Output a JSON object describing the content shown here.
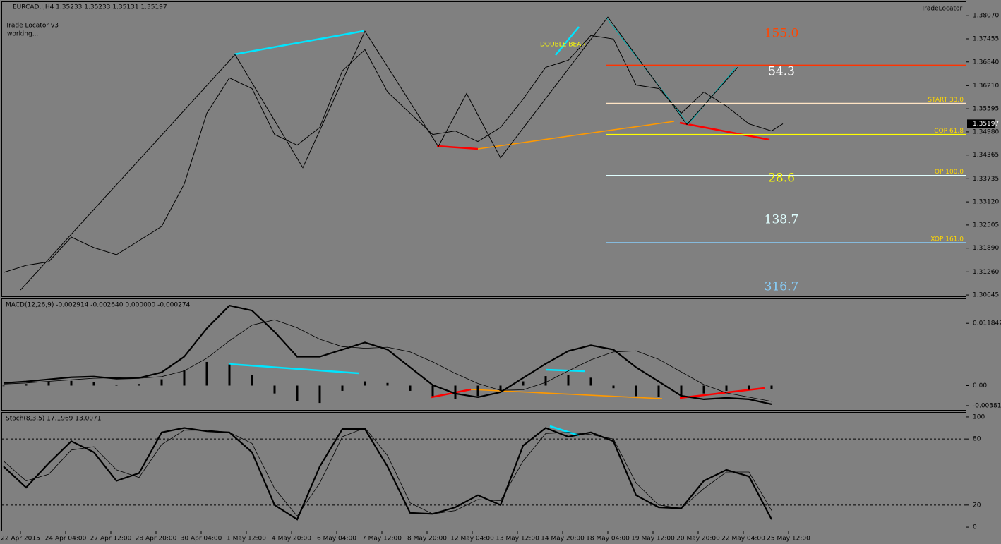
{
  "chart_data": [
    {
      "type": "line",
      "title": "EURCAD.I,H4 1.35233 1.35233 1.35131 1.35197",
      "indicator_name": "Trade Locator v3",
      "status": "working...",
      "brand": "TradeLocator",
      "pattern_label": "DOUBLE  BEAR",
      "xlim": [
        0,
        170.5
      ],
      "ylim": [
        1.3059,
        1.3843
      ],
      "yticks": [
        {
          "value": 1.3807,
          "label": "1.38070"
        },
        1.37455,
        {
          "value": 1.3684,
          "label": "1.36840"
        },
        {
          "value": 1.3621,
          "label": "1.36210"
        },
        1.35595,
        {
          "value": 1.3498,
          "label": "1.34980"
        },
        1.34365,
        1.33735,
        {
          "value": 1.3312,
          "label": "1.33120"
        },
        1.32505,
        {
          "value": 1.3189,
          "label": "1.31890"
        },
        {
          "value": 1.3126,
          "label": "1.31260"
        },
        1.30645
      ],
      "x": [
        0,
        4,
        8,
        12,
        16,
        20,
        24,
        28,
        32,
        36,
        40,
        44,
        48,
        52,
        56,
        60,
        64,
        68,
        72,
        76,
        80,
        84,
        88,
        92,
        96,
        100,
        104,
        108,
        112,
        116,
        120,
        124,
        128,
        132,
        136,
        138
      ],
      "series": [
        {
          "color": "#000000",
          "values": [
            1.31245,
            1.31433,
            1.31527,
            1.32185,
            1.31903,
            1.31715,
            1.32091,
            1.32467,
            1.33595,
            1.35475,
            1.36415,
            1.36133,
            1.34911,
            1.34629,
            1.35099,
            1.36603,
            1.37167,
            1.36039,
            1.35475,
            1.34911,
            1.35005,
            1.34723,
            1.35099,
            1.35851,
            1.36697,
            1.36885,
            1.37543,
            1.37449,
            1.36227,
            1.36133,
            1.35475,
            1.36039,
            1.35663,
            1.35193,
            1.35005,
            1.35197
          ]
        }
      ],
      "zigzag": {
        "color": "#000000",
        "x": [
          3,
          41,
          53,
          64,
          77,
          82,
          88,
          107,
          121,
          130
        ],
        "values": [
          1.30775,
          1.37036,
          1.34028,
          1.37656,
          1.34592,
          1.36002,
          1.34291,
          1.38032,
          1.35175,
          1.36697
        ]
      },
      "last_price": 1.35197,
      "levels": [
        {
          "value": 1.36754,
          "color": "#ff3300"
        },
        {
          "label": "START 33.0",
          "value": 1.35739,
          "color": "#ffe4c4"
        },
        {
          "label": "COP 61.8",
          "value": 1.34911,
          "color": "#ffff00"
        },
        {
          "label": "OP 100.0",
          "value": 1.33821,
          "color": "#e0ffff"
        },
        {
          "label": "XOP 161.0",
          "value": 1.32035,
          "color": "#87cefa"
        }
      ],
      "annotations": [
        {
          "text": "155.0",
          "color": "#ff4500"
        },
        {
          "text": "54.3",
          "color": "#ffffff"
        },
        {
          "text": "28.6",
          "color": "#ffff00"
        },
        {
          "text": "138.7",
          "color": "#e0ffff"
        },
        {
          "text": "316.7",
          "color": "#87cefa"
        }
      ]
    },
    {
      "type": "bar",
      "title": "MACD(12,26,9) -0.002914 -0.002640 0.000000 -0.000274",
      "xlim": [
        0,
        170.5
      ],
      "ylim": [
        -0.004763,
        0.016432
      ],
      "yticks": [
        0.011842,
        {
          "value": 0,
          "label": "0.00"
        },
        -0.003818
      ],
      "x": [
        0,
        4,
        8,
        12,
        16,
        20,
        24,
        28,
        32,
        36,
        40,
        44,
        48,
        52,
        56,
        60,
        64,
        68,
        72,
        76,
        80,
        84,
        88,
        92,
        96,
        100,
        104,
        108,
        112,
        116,
        120,
        124,
        128,
        132,
        136
      ],
      "color": "#000000",
      "values": [
        -0.0001,
        0.0003,
        0.0008,
        0.0009,
        0.0007,
        0.0002,
        0.0003,
        0.0012,
        0.003,
        0.0045,
        0.004,
        0.002,
        -0.0015,
        -0.003,
        -0.0033,
        -0.001,
        0.0008,
        0.0005,
        -0.001,
        -0.002,
        -0.0025,
        -0.002,
        -0.001,
        0.0008,
        0.0018,
        0.002,
        0.0015,
        -0.0005,
        -0.002,
        -0.0022,
        -0.0022,
        -0.0015,
        -0.001,
        -0.0008,
        -0.0006
      ],
      "series": [
        {
          "color": "#000000",
          "width": 2.2,
          "values": [
            0.000502,
            0.000772,
            0.001177,
            0.001582,
            0.001717,
            0.001312,
            0.001447,
            0.002527,
            0.005497,
            0.010897,
            0.015217,
            0.014272,
            0.010222,
            0.005497,
            0.005497,
            0.006847,
            0.008197,
            0.006847,
            0.003472,
            9.7e-05,
            -0.001523,
            -0.002198,
            -0.001253,
            0.001447,
            0.004147,
            0.006577,
            0.007657,
            0.006847,
            0.003472,
            0.000772,
            -0.001928,
            -0.002603,
            -0.002333,
            -0.002603,
            -0.003548
          ]
        },
        {
          "color": "#000000",
          "width": 0.8,
          "values": [
            0.0003,
            0.0005,
            0.0008,
            0.0011,
            0.0014,
            0.0015,
            0.0014,
            0.0017,
            0.0028,
            0.0052,
            0.0085,
            0.0115,
            0.0125,
            0.011,
            0.0088,
            0.0074,
            0.0071,
            0.0073,
            0.0064,
            0.0045,
            0.0023,
            0.0004,
            -0.0009,
            -0.0008,
            0.0006,
            0.0028,
            0.0049,
            0.0064,
            0.0066,
            0.005,
            0.0026,
            0.0002,
            -0.0014,
            -0.0022,
            -0.003
          ]
        }
      ]
    },
    {
      "type": "line",
      "title": "Stoch(8,3,5) 17.1969 13.0071",
      "xlim": [
        0,
        170.5
      ],
      "ylim": [
        -3.8,
        103.8
      ],
      "yticks": [
        100,
        80,
        20,
        0
      ],
      "levels": [
        80,
        20
      ],
      "xticks": [
        {
          "value": 3,
          "label": "22 Apr 2015"
        },
        {
          "value": 11,
          "label": "24 Apr 04:00"
        },
        {
          "value": 19,
          "label": "27 Apr 12:00"
        },
        {
          "value": 27,
          "label": "28 Apr 20:00"
        },
        {
          "value": 35,
          "label": "30 Apr 04:00"
        },
        {
          "value": 43,
          "label": "1 May 12:00"
        },
        {
          "value": 51,
          "label": "4 May 20:00"
        },
        {
          "value": 59,
          "label": "6 May 04:00"
        },
        {
          "value": 67,
          "label": "7 May 12:00"
        },
        {
          "value": 75,
          "label": "8 May 20:00"
        },
        {
          "value": 83,
          "label": "12 May 04:00"
        },
        {
          "value": 91,
          "label": "13 May 12:00"
        },
        {
          "value": 99,
          "label": "14 May 20:00"
        },
        {
          "value": 107,
          "label": "18 May 04:00"
        },
        {
          "value": 115,
          "label": "19 May 12:00"
        },
        {
          "value": 123,
          "label": "20 May 20:00"
        },
        {
          "value": 131,
          "label": "22 May 04:00"
        },
        {
          "value": 139,
          "label": "25 May 12:00"
        }
      ],
      "x": [
        0,
        4,
        8,
        12,
        16,
        20,
        24,
        28,
        32,
        36,
        40,
        44,
        48,
        52,
        56,
        60,
        64,
        68,
        72,
        76,
        80,
        84,
        88,
        92,
        96,
        100,
        104,
        108,
        112,
        116,
        120,
        124,
        128,
        132,
        136
      ],
      "series": [
        {
          "color": "#000000",
          "width": 2.2,
          "values": [
            55,
            36,
            58,
            78,
            68,
            42,
            49,
            86,
            90,
            87,
            86,
            68,
            20,
            7,
            55,
            89,
            89,
            55,
            13,
            12,
            18,
            29,
            20,
            74,
            90,
            82,
            86,
            78,
            29,
            18,
            17,
            42,
            52,
            46,
            7
          ]
        },
        {
          "color": "#000000",
          "width": 0.8,
          "values": [
            60,
            42,
            48,
            70,
            73,
            52,
            45,
            75,
            88,
            88,
            86,
            76,
            35,
            10,
            40,
            82,
            90,
            65,
            22,
            12,
            15,
            25,
            24,
            60,
            85,
            86,
            84,
            80,
            40,
            20,
            17,
            35,
            50,
            50,
            15
          ]
        }
      ]
    }
  ]
}
